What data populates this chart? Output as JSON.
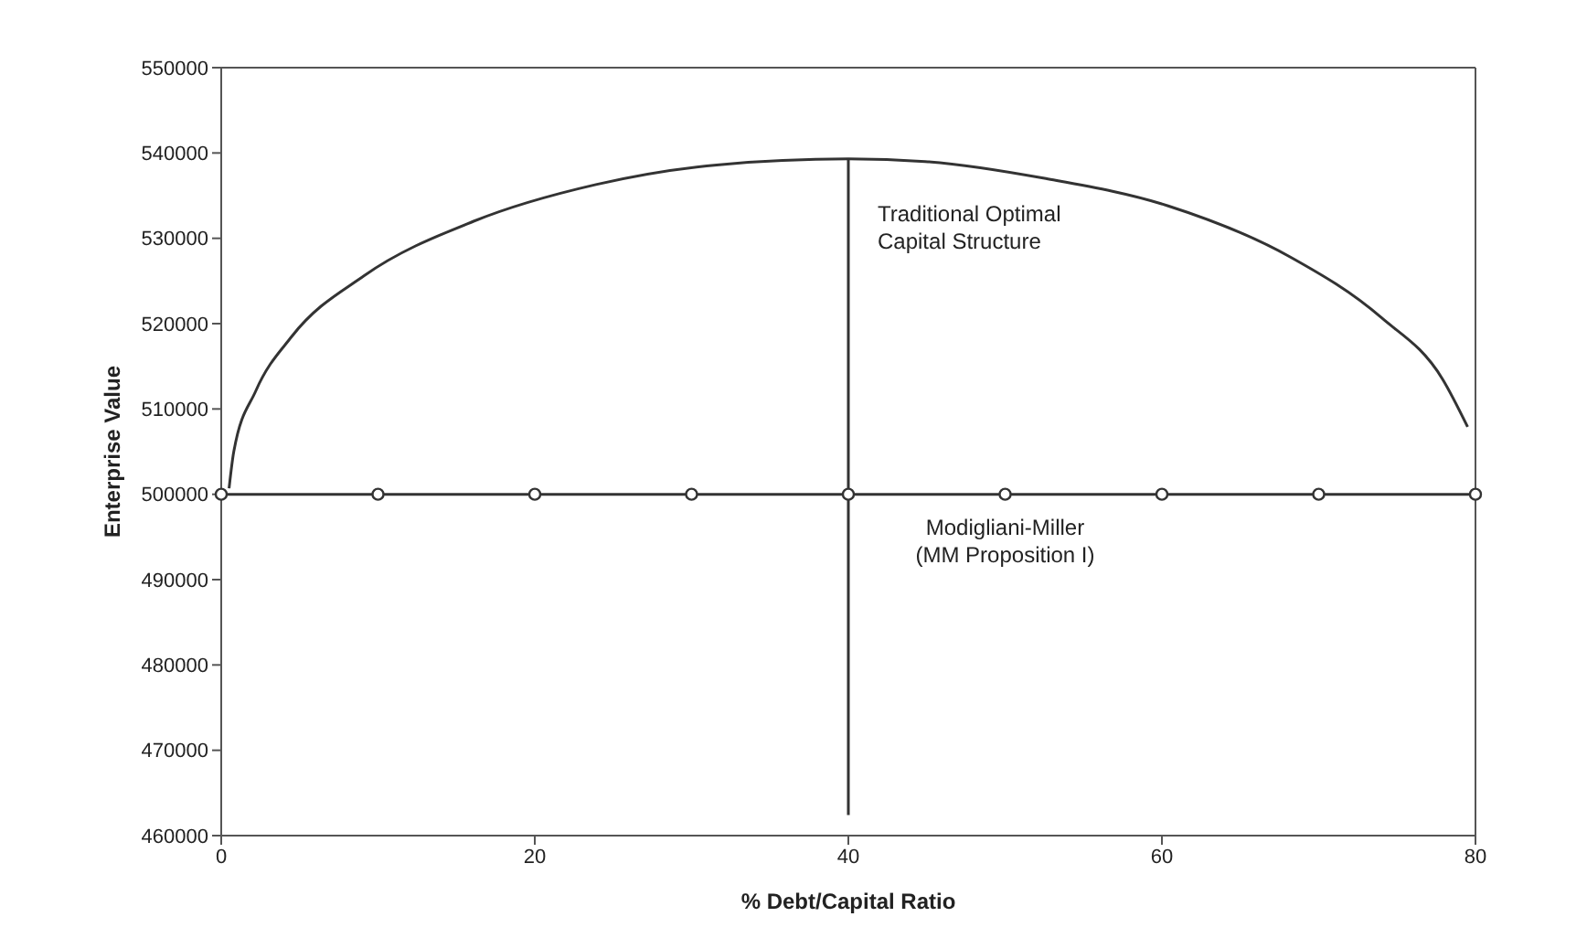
{
  "chart_data": {
    "type": "line",
    "xlabel": "% Debt/Capital Ratio",
    "ylabel": "Enterprise Value",
    "xlim": [
      0,
      80
    ],
    "xticks": [
      0,
      20,
      40,
      60,
      80
    ],
    "ylim": [
      460000,
      550000
    ],
    "yticks": [
      460000,
      470000,
      480000,
      490000,
      500000,
      510000,
      520000,
      530000,
      540000,
      550000
    ],
    "series": [
      {
        "color": "#333333",
        "marker": "none",
        "x": [
          0.5,
          0.8,
          2.2,
          4.5,
          9.1,
          16.1,
          23.9,
          31.6,
          40,
          44.9,
          52.6,
          60.4,
          68.2,
          74,
          77.9,
          79.5
        ],
        "values": [
          500700,
          505000,
          512100,
          518500,
          525600,
          532000,
          536300,
          538600,
          539300,
          539000,
          537000,
          533800,
          527800,
          520700,
          513500,
          507900
        ]
      },
      {
        "color": "#333333",
        "marker": "circle",
        "x": [
          0,
          10,
          20,
          30,
          40,
          50,
          60,
          70,
          80
        ],
        "values": [
          500000,
          500000,
          500000,
          500000,
          500000,
          500000,
          500000,
          500000,
          500000
        ]
      },
      {
        "color": "#333333",
        "marker": "none",
        "x": [
          40,
          40
        ],
        "values": [
          462400,
          539300
        ]
      }
    ],
    "annotations": [
      {
        "text": "Traditional Optimal\nCapital Structure",
        "x": 40,
        "y": 539300
      },
      {
        "text": "Modigliani-Miller\n(MM Proposition I)",
        "x": 50,
        "y": 500000
      }
    ]
  }
}
